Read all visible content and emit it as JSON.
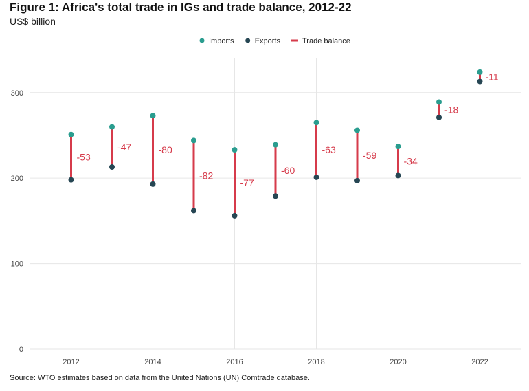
{
  "chart_data": {
    "type": "dumbbell",
    "title": "Figure 1: Africa's total trade in IGs and trade balance, 2012-22",
    "subtitle": "US$ billion",
    "source": "Source: WTO estimates based on data from the United Nations (UN) Comtrade database.",
    "xlabel": "",
    "ylabel": "",
    "x": [
      2012,
      2013,
      2014,
      2015,
      2016,
      2017,
      2018,
      2019,
      2020,
      2021,
      2022
    ],
    "x_ticks": [
      2012,
      2014,
      2016,
      2018,
      2020,
      2022
    ],
    "x_tick_labels": [
      "2012",
      "2014",
      "2016",
      "2018",
      "2020",
      "2022"
    ],
    "xlim": [
      2011,
      2023
    ],
    "y_ticks": [
      0,
      100,
      200,
      300
    ],
    "y_tick_labels": [
      "0",
      "100",
      "200",
      "300"
    ],
    "ylim": [
      0,
      340
    ],
    "grid": true,
    "legend_position": "top",
    "legend": [
      {
        "name": "Imports",
        "marker": "dot",
        "color": "#2a9d8f"
      },
      {
        "name": "Exports",
        "marker": "dot",
        "color": "#264653"
      },
      {
        "name": "Trade balance",
        "marker": "line",
        "color": "#d63b4b"
      }
    ],
    "series": [
      {
        "name": "Imports",
        "values": [
          251,
          260,
          273,
          244,
          233,
          239,
          265,
          256,
          237,
          289,
          324
        ]
      },
      {
        "name": "Exports",
        "values": [
          198,
          213,
          193,
          162,
          156,
          179,
          201,
          197,
          203,
          271,
          313
        ]
      }
    ],
    "trade_balance": [
      -53,
      -47,
      -80,
      -82,
      -77,
      -60,
      -63,
      -59,
      -34,
      -18,
      -11
    ],
    "trade_balance_labels": [
      "-53",
      "-47",
      "-80",
      "-82",
      "-77",
      "-60",
      "-63",
      "-59",
      "-34",
      "-18",
      "-11"
    ]
  }
}
